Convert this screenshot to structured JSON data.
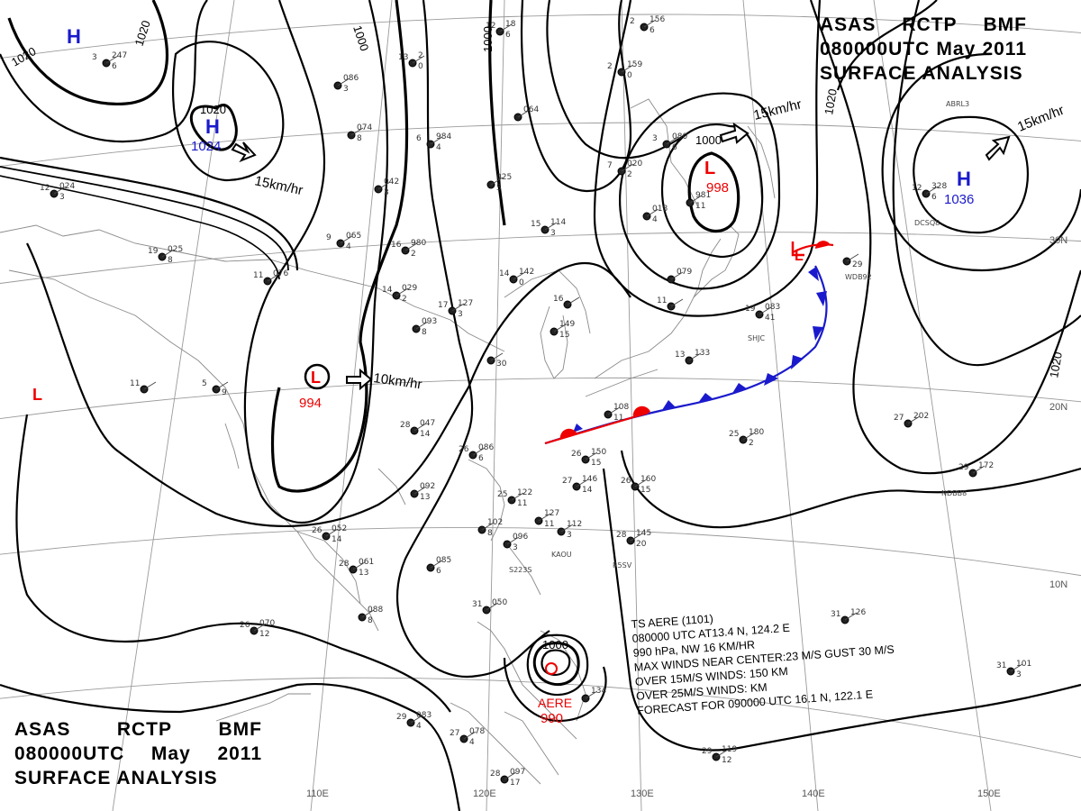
{
  "header": {
    "line1": [
      "ASAS",
      "RCTP",
      "BMF"
    ],
    "line2": [
      "080000UTC",
      "May",
      "2011"
    ],
    "line3": "SURFACE ANALYSIS"
  },
  "pressure_systems": [
    {
      "type": "H",
      "label": "",
      "color": "#1a1acc"
    },
    {
      "type": "H",
      "label": "1024",
      "color": "#1a1acc"
    },
    {
      "type": "H",
      "label": "1036",
      "color": "#1a1acc"
    },
    {
      "type": "L",
      "label": "998",
      "color": "#ee0000"
    },
    {
      "type": "L",
      "label": "994",
      "color": "#ee0000"
    },
    {
      "type": "L",
      "label": "",
      "color": "#ee0000"
    },
    {
      "type": "L",
      "label": "",
      "color": "#ee0000"
    },
    {
      "type": "TS",
      "label": "990",
      "name": "AERE",
      "color": "#ee0000"
    }
  ],
  "motion_labels": [
    "15km/hr",
    "15km/hr",
    "15km/hr",
    "10km/hr"
  ],
  "isobar_labels": [
    "1020",
    "1020",
    "1020",
    "1000",
    "1000",
    "1000",
    "1020",
    "1020",
    "1000"
  ],
  "lat_labels": [
    "30N",
    "20N",
    "10N"
  ],
  "lon_labels": [
    "110E",
    "120E",
    "130E",
    "140E",
    "150E"
  ],
  "storm_info": [
    "TS  AERE  (1101)",
    "080000 UTC  AT13.4 N, 124.2 E",
    "990 hPa, NW  16 KM/HR",
    "MAX WINDS NEAR CENTER:23 M/S GUST 30 M/S",
    "OVER 15M/S WINDS: 150 KM",
    "OVER 25M/S WINDS:  KM",
    "FORECAST FOR 090000 UTC 16.1 N, 122.1 E"
  ],
  "stations": [
    {
      "a": "3",
      "b": "247",
      "c": "6"
    },
    {
      "a": "13",
      "b": "2",
      "c": "0"
    },
    {
      "a": "12",
      "b": "18",
      "c": "6"
    },
    {
      "a": "",
      "b": "086",
      "c": "3"
    },
    {
      "a": "",
      "b": "074",
      "c": "8"
    },
    {
      "a": "6",
      "b": "984",
      "c": "4"
    },
    {
      "a": "",
      "b": "064",
      "c": ""
    },
    {
      "a": "2",
      "b": "159",
      "c": "0"
    },
    {
      "a": "2",
      "b": "156",
      "c": "6"
    },
    {
      "a": "3",
      "b": "080",
      "c": "6"
    },
    {
      "a": "7",
      "b": "020",
      "c": "2"
    },
    {
      "a": "",
      "b": "018",
      "c": "4"
    },
    {
      "a": "",
      "b": "981",
      "c": "11"
    },
    {
      "a": "",
      "b": "042",
      "c": "3"
    },
    {
      "a": "9",
      "b": "065",
      "c": "4"
    },
    {
      "a": "",
      "b": "025",
      "c": "5"
    },
    {
      "a": "19",
      "b": "025",
      "c": "8"
    },
    {
      "a": "12",
      "b": "024",
      "c": "3"
    },
    {
      "a": "11",
      "b": "076",
      "c": ""
    },
    {
      "a": "16",
      "b": "980",
      "c": "2"
    },
    {
      "a": "15",
      "b": "114",
      "c": "3"
    },
    {
      "a": "14",
      "b": "142",
      "c": "0"
    },
    {
      "a": "14",
      "b": "029",
      "c": "2"
    },
    {
      "a": "17",
      "b": "127",
      "c": "3"
    },
    {
      "a": "16",
      "b": "",
      "c": ""
    },
    {
      "a": "",
      "b": "093",
      "c": "8"
    },
    {
      "a": "",
      "b": "149",
      "c": "15"
    },
    {
      "a": "",
      "b": "",
      "c": "30"
    },
    {
      "a": "5",
      "b": "",
      "c": "9"
    },
    {
      "a": "11",
      "b": "",
      "c": ""
    },
    {
      "a": "28",
      "b": "047",
      "c": "14"
    },
    {
      "a": "26",
      "b": "086",
      "c": "6"
    },
    {
      "a": "",
      "b": "108",
      "c": "11"
    },
    {
      "a": "26",
      "b": "150",
      "c": "15"
    },
    {
      "a": "27",
      "b": "146",
      "c": "14"
    },
    {
      "a": "26",
      "b": "160",
      "c": "15"
    },
    {
      "a": "25",
      "b": "180",
      "c": "2"
    },
    {
      "a": "27",
      "b": "202",
      "c": ""
    },
    {
      "a": "29",
      "b": "172",
      "c": ""
    },
    {
      "a": "",
      "b": "092",
      "c": "13"
    },
    {
      "a": "25",
      "b": "122",
      "c": "11"
    },
    {
      "a": "",
      "b": "127",
      "c": "11"
    },
    {
      "a": "26",
      "b": "052",
      "c": "14"
    },
    {
      "a": "",
      "b": "102",
      "c": "8"
    },
    {
      "a": "",
      "b": "096",
      "c": "3"
    },
    {
      "a": "",
      "b": "112",
      "c": "3"
    },
    {
      "a": "28",
      "b": "145",
      "c": "20"
    },
    {
      "a": "28",
      "b": "061",
      "c": "13"
    },
    {
      "a": "",
      "b": "085",
      "c": "6"
    },
    {
      "a": "26",
      "b": "070",
      "c": "12"
    },
    {
      "a": "",
      "b": "088",
      "c": "8"
    },
    {
      "a": "31",
      "b": "050",
      "c": ""
    },
    {
      "a": "31",
      "b": "126",
      "c": ""
    },
    {
      "a": "31",
      "b": "101",
      "c": "3"
    },
    {
      "a": "29",
      "b": "083",
      "c": "4"
    },
    {
      "a": "27",
      "b": "078",
      "c": "4"
    },
    {
      "a": "",
      "b": "134",
      "c": ""
    },
    {
      "a": "29",
      "b": "119",
      "c": "12"
    },
    {
      "a": "28",
      "b": "097",
      "c": "17"
    },
    {
      "a": "12",
      "b": "328",
      "c": "6"
    },
    {
      "a": "19",
      "b": "083",
      "c": "41"
    },
    {
      "a": "13",
      "b": "133",
      "c": ""
    },
    {
      "a": "11",
      "b": "",
      "c": ""
    },
    {
      "a": "",
      "b": "079",
      "c": ""
    },
    {
      "a": "",
      "b": "",
      "c": "29"
    }
  ],
  "station_tags": [
    "SHJC",
    "ABRL3",
    "DCSQ8",
    "KAOU",
    "WDB92",
    "R5SV",
    "S223S",
    "NDBB8"
  ]
}
